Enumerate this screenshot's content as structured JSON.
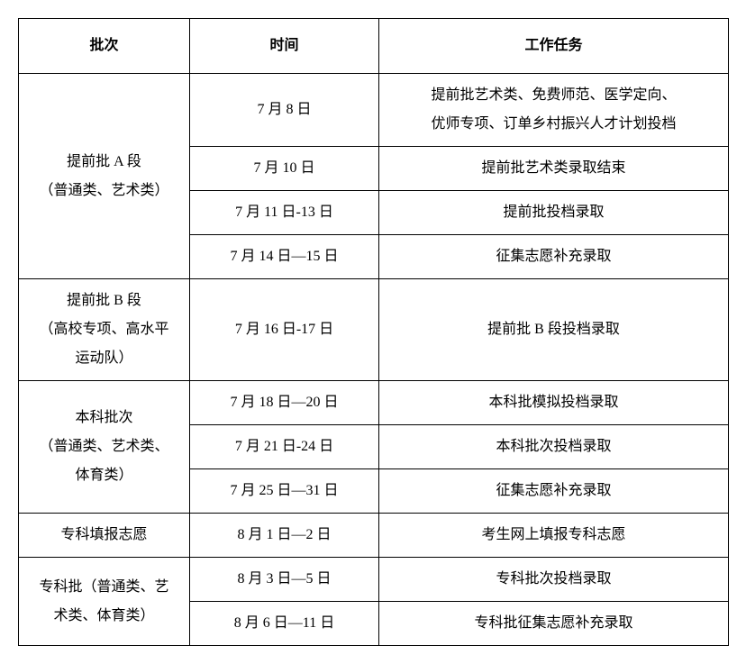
{
  "table": {
    "headers": {
      "batch": "批次",
      "time": "时间",
      "task": "工作任务"
    },
    "groups": [
      {
        "batch_lines": [
          "提前批 A 段",
          "（普通类、艺术类）"
        ],
        "rows": [
          {
            "time": "7 月 8 日",
            "task_lines": [
              "提前批艺术类、免费师范、医学定向、",
              "优师专项、订单乡村振兴人才计划投档"
            ]
          },
          {
            "time": "7 月 10 日",
            "task": "提前批艺术类录取结束"
          },
          {
            "time": "7 月 11 日-13 日",
            "task": "提前批投档录取"
          },
          {
            "time": "7 月 14 日—15 日",
            "task": "征集志愿补充录取"
          }
        ]
      },
      {
        "batch_lines": [
          "提前批 B 段",
          "（高校专项、高水平",
          "运动队）"
        ],
        "rows": [
          {
            "time": "7 月 16 日-17 日",
            "task": "提前批 B 段投档录取"
          }
        ]
      },
      {
        "batch_lines": [
          "本科批次",
          "（普通类、艺术类、",
          "体育类）"
        ],
        "rows": [
          {
            "time": "7 月 18 日—20 日",
            "task": "本科批模拟投档录取"
          },
          {
            "time": "7 月 21 日-24 日",
            "task": "本科批次投档录取"
          },
          {
            "time": "7 月 25 日—31 日",
            "task": "征集志愿补充录取"
          }
        ]
      },
      {
        "batch_lines": [
          "专科填报志愿"
        ],
        "rows": [
          {
            "time": "8 月 1 日—2 日",
            "task": "考生网上填报专科志愿"
          }
        ]
      },
      {
        "batch_lines": [
          "专科批（普通类、艺",
          "术类、体育类）"
        ],
        "rows": [
          {
            "time": "8 月 3 日—5 日",
            "task": "专科批次投档录取"
          },
          {
            "time": "8 月 6 日—11 日",
            "task": "专科批征集志愿补充录取"
          }
        ]
      }
    ]
  }
}
